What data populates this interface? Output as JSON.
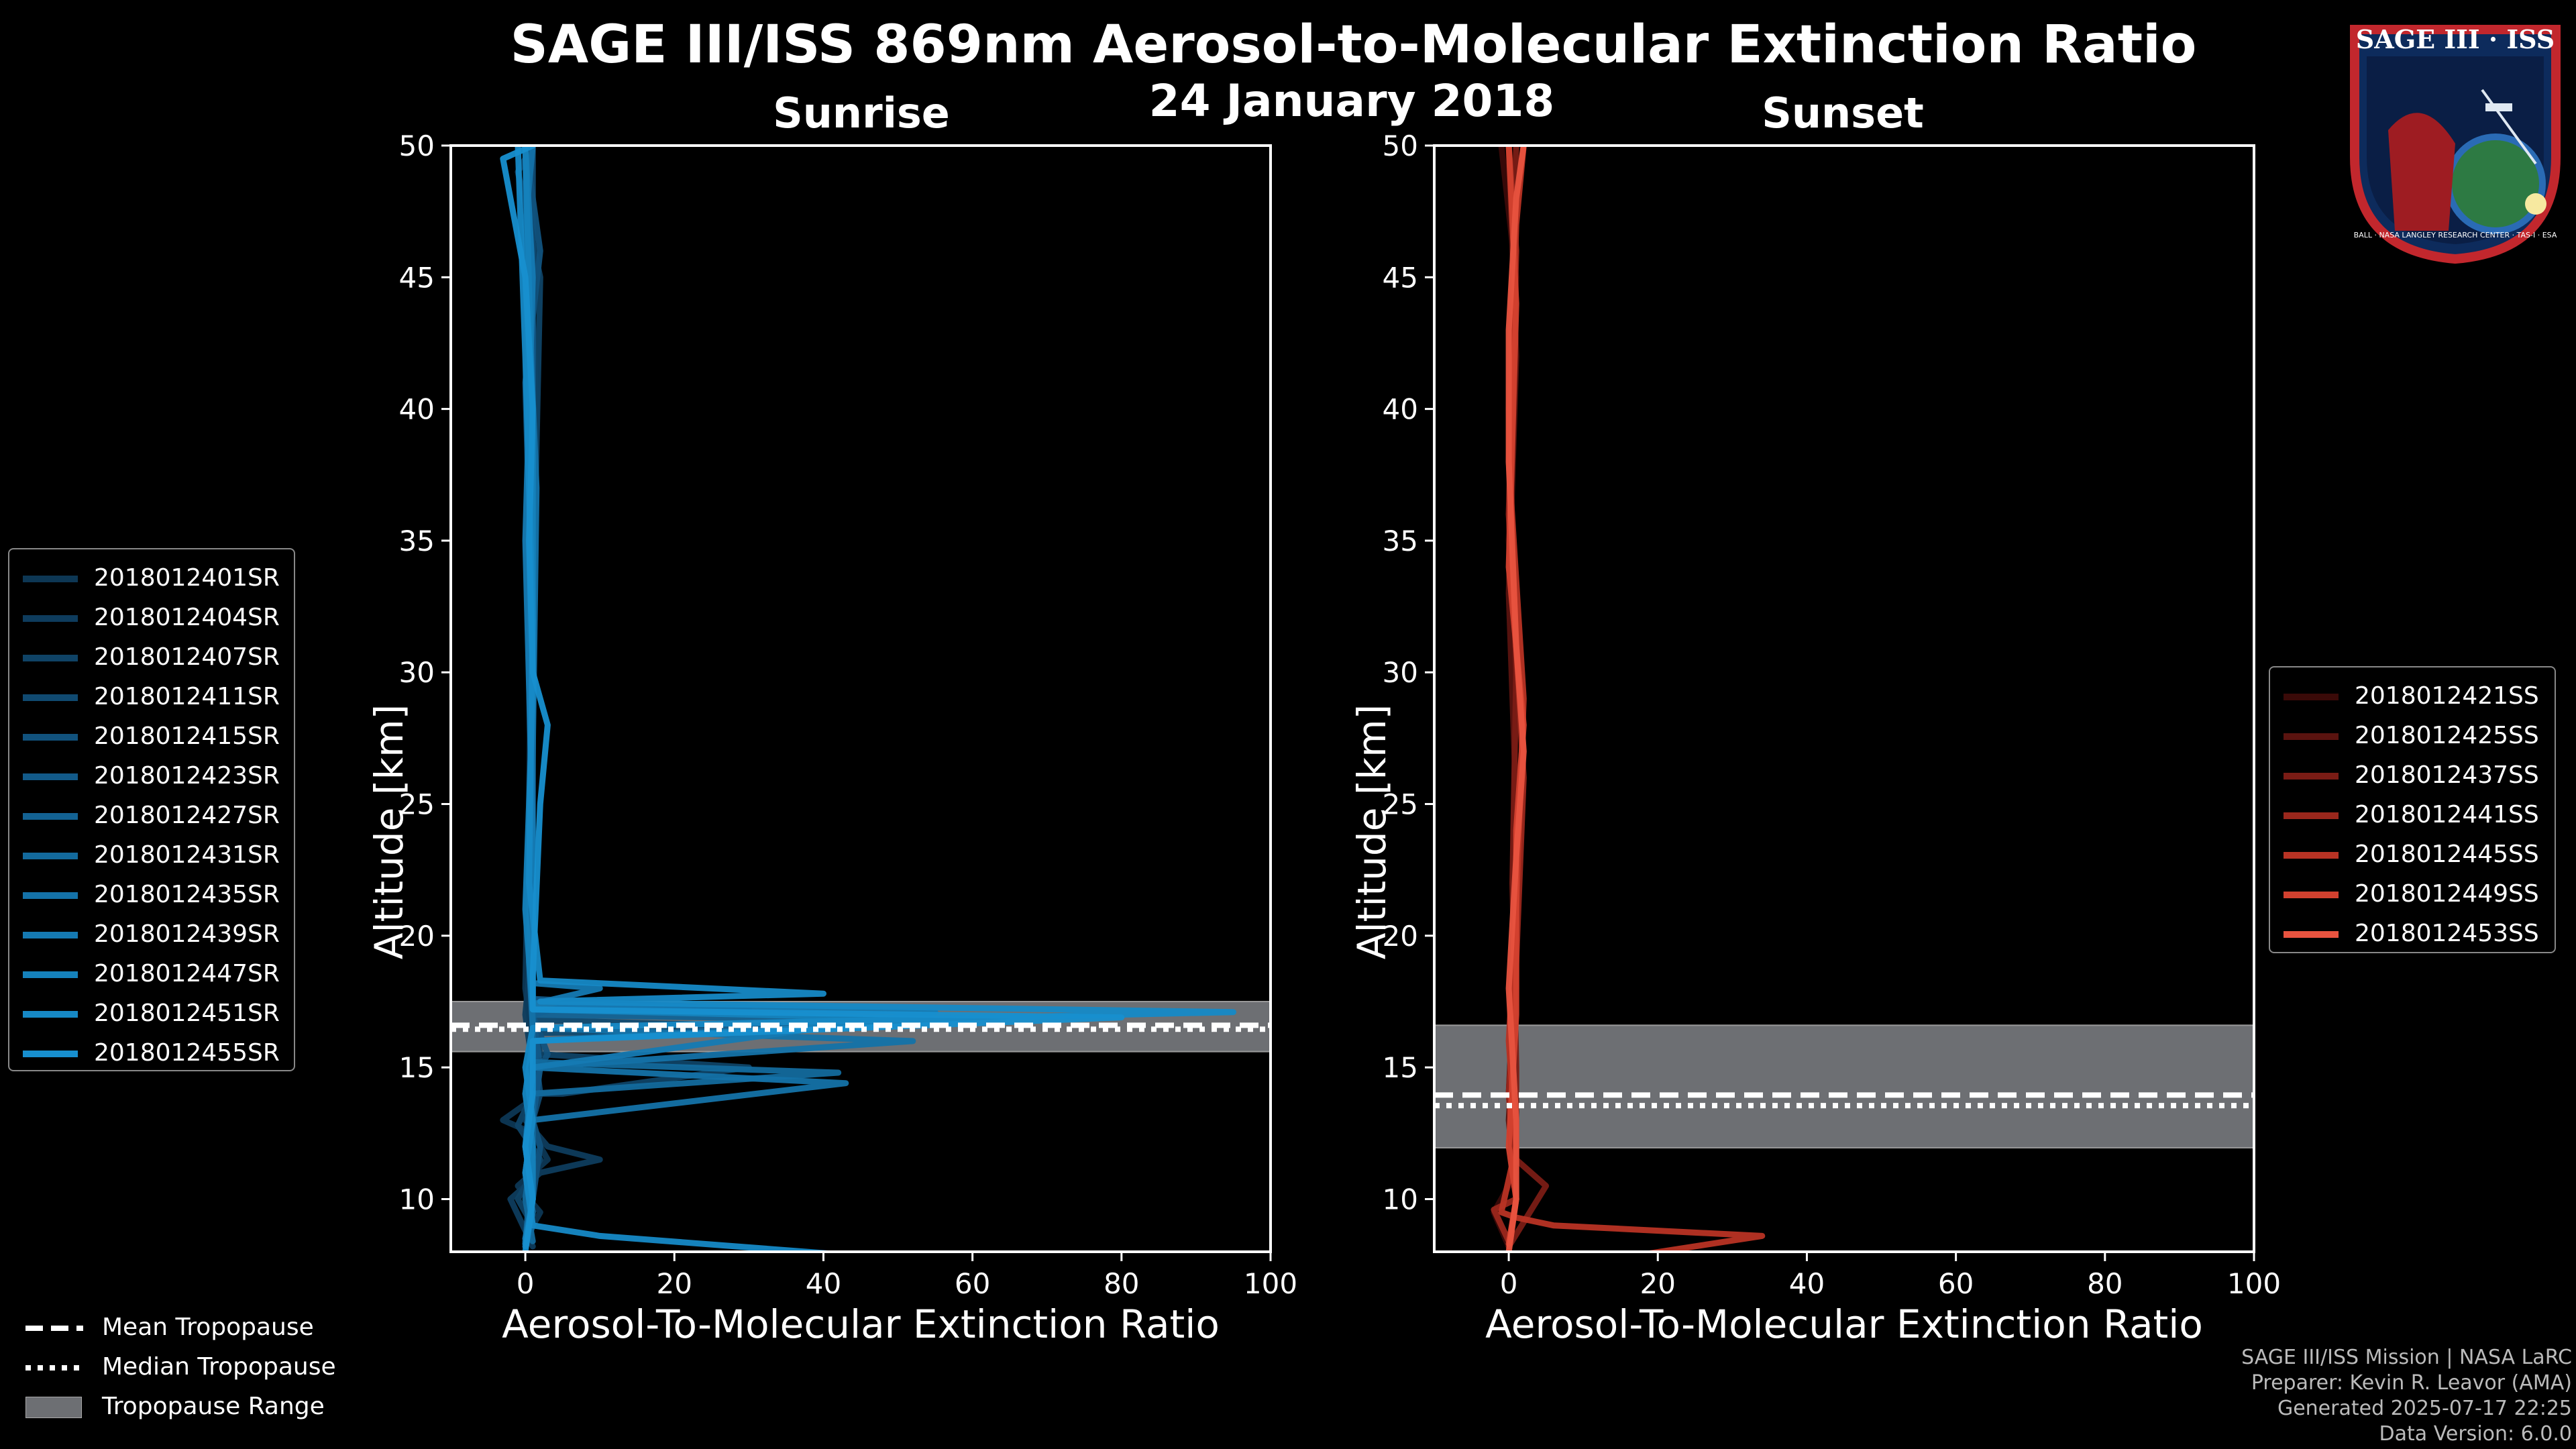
{
  "title": "SAGE III/ISS 869nm Aerosol-to-Molecular Extinction Ratio",
  "date": "24 January 2018",
  "logo": {
    "label": "SAGE III · ISS",
    "ring_text": "BALL · NASA LANGLEY RESEARCH CENTER · TAS-I · ESA"
  },
  "footer": {
    "mission": "SAGE III/ISS Mission | NASA LaRC",
    "preparer": "Preparer: Kevin R. Leavor (AMA)",
    "generated": "Generated 2025-07-17 22:25",
    "version": "Data Version: 6.0.0"
  },
  "bottom_legend": [
    {
      "label": "Mean Tropopause",
      "style": "dashed"
    },
    {
      "label": "Median Tropopause",
      "style": "dotted"
    },
    {
      "label": "Tropopause Range",
      "style": "patch"
    }
  ],
  "colors": {
    "sunrise_series": [
      "#0d3754",
      "#0e3c5d",
      "#0f4366",
      "#104a71",
      "#11527d",
      "#125a89",
      "#136293",
      "#136a9d",
      "#1472a8",
      "#157ab3",
      "#1582bc",
      "#1689c6",
      "#178fcf"
    ],
    "sunset_series": [
      "#3a0a08",
      "#5a130f",
      "#7a1c15",
      "#9a271c",
      "#b83324",
      "#d3412f",
      "#e8533f"
    ],
    "tropopause_range": "#6d6f73",
    "tropopause_line": "#ffffff"
  },
  "chart_data": [
    {
      "type": "line",
      "subtitle": "Sunrise",
      "xlabel": "Aerosol-To-Molecular Extinction Ratio",
      "ylabel": "Altitude [km]",
      "xlim": [
        -10,
        100
      ],
      "ylim": [
        8,
        50
      ],
      "xticks": [
        0,
        20,
        40,
        60,
        80,
        100
      ],
      "yticks": [
        10,
        15,
        20,
        25,
        30,
        35,
        40,
        45,
        50
      ],
      "tropopause": {
        "mean": 16.6,
        "median": 16.45,
        "range": [
          15.6,
          17.5
        ]
      },
      "series": [
        {
          "name": "2018012401SR",
          "points": [
            [
              0,
              8.5
            ],
            [
              2,
              9.5
            ],
            [
              -1,
              10.5
            ],
            [
              3,
              11.5
            ],
            [
              1,
              12.5
            ],
            [
              -3,
              13
            ],
            [
              2,
              14
            ],
            [
              1,
              16
            ],
            [
              0,
              18
            ],
            [
              0.5,
              25
            ],
            [
              1,
              35
            ],
            [
              0,
              45
            ],
            [
              1,
              50
            ]
          ]
        },
        {
          "name": "2018012404SR",
          "points": [
            [
              1,
              8.2
            ],
            [
              -2,
              10
            ],
            [
              2,
              11
            ],
            [
              10,
              11.5
            ],
            [
              3,
              12
            ],
            [
              0,
              13
            ],
            [
              1,
              15
            ],
            [
              0,
              17
            ],
            [
              1,
              20
            ],
            [
              0.5,
              30
            ],
            [
              1.5,
              40
            ],
            [
              0,
              50
            ]
          ]
        },
        {
          "name": "2018012407SR",
          "points": [
            [
              0,
              8.3
            ],
            [
              1,
              9
            ],
            [
              -1,
              10
            ],
            [
              2,
              11.5
            ],
            [
              -1,
              12.8
            ],
            [
              1,
              14
            ],
            [
              5,
              14
            ],
            [
              30,
              15
            ],
            [
              2,
              15.5
            ],
            [
              1,
              17
            ],
            [
              0.5,
              22
            ],
            [
              1,
              32
            ],
            [
              2,
              45
            ],
            [
              -1,
              49
            ],
            [
              1,
              50
            ]
          ]
        },
        {
          "name": "2018012411SR",
          "points": [
            [
              0,
              8.5
            ],
            [
              1,
              10
            ],
            [
              0,
              12
            ],
            [
              2,
              14
            ],
            [
              1,
              16.3
            ],
            [
              40,
              16.5
            ],
            [
              1,
              16.8
            ],
            [
              0.5,
              20
            ],
            [
              1,
              28
            ],
            [
              1,
              38
            ],
            [
              1,
              50
            ]
          ]
        },
        {
          "name": "2018012415SR",
          "points": [
            [
              0,
              8.4
            ],
            [
              1,
              10
            ],
            [
              2,
              12
            ],
            [
              0,
              14
            ],
            [
              3,
              15.5
            ],
            [
              1,
              17
            ],
            [
              1,
              21
            ],
            [
              1,
              31
            ],
            [
              0,
              41
            ],
            [
              2,
              46
            ],
            [
              0,
              50
            ]
          ]
        },
        {
          "name": "2018012423SR",
          "points": [
            [
              0,
              8.2
            ],
            [
              1,
              9
            ],
            [
              0,
              11
            ],
            [
              1,
              13
            ],
            [
              2,
              15
            ],
            [
              1,
              17
            ],
            [
              5,
              17.3
            ],
            [
              30,
              17.2
            ],
            [
              1,
              17.6
            ],
            [
              1,
              24
            ],
            [
              1,
              34
            ],
            [
              1,
              44
            ],
            [
              0,
              50
            ]
          ]
        },
        {
          "name": "2018012427SR",
          "points": [
            [
              0,
              8.3
            ],
            [
              0.5,
              10
            ],
            [
              1,
              12
            ],
            [
              0,
              14
            ],
            [
              1,
              16
            ],
            [
              48,
              16.8
            ],
            [
              1,
              17
            ],
            [
              0.5,
              22
            ],
            [
              1,
              33
            ],
            [
              0,
              50
            ]
          ]
        },
        {
          "name": "2018012431SR",
          "points": [
            [
              1,
              8.4
            ],
            [
              0,
              10
            ],
            [
              1,
              12
            ],
            [
              1,
              14
            ],
            [
              42,
              14.8
            ],
            [
              1,
              15.2
            ],
            [
              1,
              17
            ],
            [
              1,
              23
            ],
            [
              0.5,
              30
            ],
            [
              1,
              40
            ],
            [
              0,
              50
            ]
          ]
        },
        {
          "name": "2018012435SR",
          "points": [
            [
              0,
              8.2
            ],
            [
              1,
              9.5
            ],
            [
              0,
              11
            ],
            [
              1,
              13
            ],
            [
              43,
              14.4
            ],
            [
              1,
              15
            ],
            [
              52,
              16
            ],
            [
              1,
              16.5
            ],
            [
              0.5,
              19
            ],
            [
              1,
              27
            ],
            [
              1.5,
              37
            ],
            [
              0,
              47
            ],
            [
              1,
              50
            ]
          ]
        },
        {
          "name": "2018012439SR",
          "points": [
            [
              0,
              8.5
            ],
            [
              1,
              10
            ],
            [
              0,
              12
            ],
            [
              1,
              15
            ],
            [
              55,
              17.1
            ],
            [
              1,
              17.4
            ],
            [
              10,
              18
            ],
            [
              1,
              18.2
            ],
            [
              1,
              24
            ],
            [
              0,
              35
            ],
            [
              1,
              45
            ],
            [
              0,
              50
            ]
          ]
        },
        {
          "name": "2018012447SR",
          "points": [
            [
              0,
              8.3
            ],
            [
              1,
              10
            ],
            [
              1,
              12
            ],
            [
              0,
              14
            ],
            [
              1,
              16
            ],
            [
              60,
              16.8
            ],
            [
              1,
              17.2
            ],
            [
              0,
              21
            ],
            [
              1,
              29
            ],
            [
              1,
              39
            ],
            [
              0,
              50
            ]
          ]
        },
        {
          "name": "2018012451SR",
          "points": [
            [
              47,
              7.8
            ],
            [
              10,
              8.6
            ],
            [
              1,
              9
            ],
            [
              0,
              11
            ],
            [
              1,
              13
            ],
            [
              0,
              15
            ],
            [
              1,
              16.5
            ],
            [
              95,
              17.1
            ],
            [
              2,
              17.5
            ],
            [
              40,
              17.8
            ],
            [
              2,
              18.3
            ],
            [
              0.5,
              22
            ],
            [
              1,
              32
            ],
            [
              0,
              42
            ],
            [
              -1,
              50
            ]
          ]
        },
        {
          "name": "2018012455SR",
          "points": [
            [
              0,
              8
            ],
            [
              1,
              10
            ],
            [
              0,
              12
            ],
            [
              1,
              14
            ],
            [
              1,
              16
            ],
            [
              80,
              16.9
            ],
            [
              1,
              17.2
            ],
            [
              1,
              18.5
            ],
            [
              2,
              25
            ],
            [
              3,
              28
            ],
            [
              1,
              30
            ],
            [
              0.5,
              35
            ],
            [
              1,
              40
            ],
            [
              0,
              45
            ],
            [
              -3,
              49.5
            ],
            [
              1,
              50
            ]
          ]
        }
      ]
    },
    {
      "type": "line",
      "subtitle": "Sunset",
      "xlabel": "Aerosol-To-Molecular Extinction Ratio",
      "ylabel": "Altitude [km]",
      "xlim": [
        -10,
        100
      ],
      "ylim": [
        8,
        50
      ],
      "xticks": [
        0,
        20,
        40,
        60,
        80,
        100
      ],
      "yticks": [
        10,
        15,
        20,
        25,
        30,
        35,
        40,
        45,
        50
      ],
      "tropopause": {
        "mean": 13.95,
        "median": 13.55,
        "range": [
          11.95,
          16.6
        ]
      },
      "series": [
        {
          "name": "2018012421SS",
          "points": [
            [
              0,
              8.2
            ],
            [
              -2,
              9.5
            ],
            [
              1,
              11
            ],
            [
              0,
              14
            ],
            [
              1,
              20
            ],
            [
              2,
              27
            ],
            [
              0,
              35
            ],
            [
              1,
              45
            ],
            [
              -1,
              50
            ]
          ]
        },
        {
          "name": "2018012425SS",
          "points": [
            [
              0,
              8.3
            ],
            [
              1,
              10
            ],
            [
              0,
              13
            ],
            [
              1,
              18
            ],
            [
              1,
              25
            ],
            [
              0,
              33
            ],
            [
              1,
              42
            ],
            [
              0,
              50
            ]
          ]
        },
        {
          "name": "2018012437SS",
          "points": [
            [
              0,
              8.2
            ],
            [
              5,
              10.5
            ],
            [
              1,
              11.5
            ],
            [
              1,
              15
            ],
            [
              0.5,
              22
            ],
            [
              1,
              30
            ],
            [
              0,
              40
            ],
            [
              1,
              50
            ]
          ]
        },
        {
          "name": "2018012441SS",
          "points": [
            [
              0,
              8.4
            ],
            [
              -2,
              9.6
            ],
            [
              1,
              10
            ],
            [
              0,
              14
            ],
            [
              1,
              19
            ],
            [
              2,
              26
            ],
            [
              0,
              36
            ],
            [
              1,
              46
            ],
            [
              0,
              50
            ]
          ]
        },
        {
          "name": "2018012445SS",
          "points": [
            [
              18,
              7.9
            ],
            [
              34,
              8.6
            ],
            [
              6,
              9
            ],
            [
              1,
              9.3
            ],
            [
              -1,
              9.5
            ],
            [
              1,
              12
            ],
            [
              0,
              16
            ],
            [
              1,
              21
            ],
            [
              2,
              29
            ],
            [
              0,
              38
            ],
            [
              1,
              47
            ],
            [
              2,
              50
            ]
          ]
        },
        {
          "name": "2018012449SS",
          "points": [
            [
              0,
              8.3
            ],
            [
              1,
              10
            ],
            [
              0,
              12
            ],
            [
              1,
              17
            ],
            [
              1,
              24
            ],
            [
              2,
              28
            ],
            [
              0,
              34
            ],
            [
              1,
              44
            ],
            [
              0,
              50
            ]
          ]
        },
        {
          "name": "2018012453SS",
          "points": [
            [
              0,
              8
            ],
            [
              1,
              10
            ],
            [
              1,
              13
            ],
            [
              0,
              18
            ],
            [
              1,
              23
            ],
            [
              2,
              27
            ],
            [
              1,
              31
            ],
            [
              0,
              38
            ],
            [
              0,
              43
            ],
            [
              1,
              48
            ],
            [
              2,
              50
            ]
          ]
        }
      ]
    }
  ]
}
